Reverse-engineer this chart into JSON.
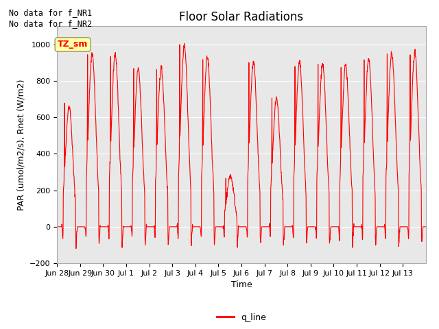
{
  "title": "Floor Solar Radiations",
  "xlabel": "Time",
  "ylabel": "PAR (umol/m2/s), Rnet (W/m2)",
  "ylim": [
    -200,
    1100
  ],
  "yticks": [
    -200,
    0,
    200,
    400,
    600,
    800,
    1000
  ],
  "legend_label": "q_line",
  "line_color": "#ff0000",
  "bg_color": "#e8e8e8",
  "text_annotations": [
    "No data for f_NR1",
    "No data for f_NR2"
  ],
  "tz_label": "TZ_sm",
  "x_tick_labels": [
    "Jun 28",
    "Jun 29",
    "Jun 30",
    "Jul 1",
    "Jul 2",
    "Jul 3",
    "Jul 4",
    "Jul 5",
    "Jul 6",
    "Jul 7",
    "Jul 8",
    "Jul 9",
    "Jul 10",
    "Jul 11",
    "Jul 12",
    "Jul 13"
  ],
  "num_days": 16,
  "day_peaks": [
    660,
    950,
    950,
    870,
    870,
    1000,
    930,
    280,
    900,
    700,
    900,
    890,
    890,
    920,
    950,
    950
  ]
}
